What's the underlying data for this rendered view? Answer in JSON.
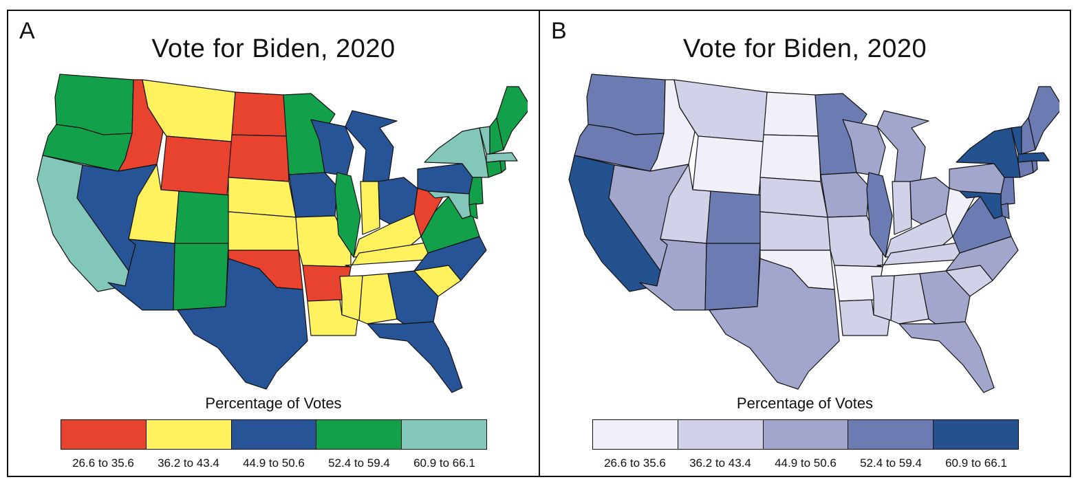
{
  "panels": [
    {
      "letter": "A",
      "title": "Vote for Biden, 2020",
      "legend_title": "Percentage of Votes",
      "classes": [
        {
          "label": "26.6 to 35.6",
          "color": "#e8432f"
        },
        {
          "label": "36.2 to 43.4",
          "color": "#fff25e"
        },
        {
          "label": "44.9 to 50.6",
          "color": "#265496"
        },
        {
          "label": "52.4 to 59.4",
          "color": "#13a04a"
        },
        {
          "label": "60.9 to 66.1",
          "color": "#83c7bb"
        }
      ]
    },
    {
      "letter": "B",
      "title": "Vote for Biden, 2020",
      "legend_title": "Percentage of Votes",
      "classes": [
        {
          "label": "26.6 to 35.6",
          "color": "#f1f0f8"
        },
        {
          "label": "36.2 to 43.4",
          "color": "#d1d1e7"
        },
        {
          "label": "44.9 to 50.6",
          "color": "#a2a6cd"
        },
        {
          "label": "52.4 to 59.4",
          "color": "#6c7cb2"
        },
        {
          "label": "60.9 to 66.1",
          "color": "#24528f"
        }
      ]
    }
  ],
  "states": [
    {
      "id": "WA",
      "class": 3
    },
    {
      "id": "OR",
      "class": 3
    },
    {
      "id": "CA",
      "class": 4
    },
    {
      "id": "ID",
      "class": 0
    },
    {
      "id": "NV",
      "class": 2
    },
    {
      "id": "MT",
      "class": 1
    },
    {
      "id": "WY",
      "class": 0
    },
    {
      "id": "UT",
      "class": 1
    },
    {
      "id": "AZ",
      "class": 2
    },
    {
      "id": "CO",
      "class": 3
    },
    {
      "id": "NM",
      "class": 3
    },
    {
      "id": "ND",
      "class": 0
    },
    {
      "id": "SD",
      "class": 0
    },
    {
      "id": "NE",
      "class": 1
    },
    {
      "id": "KS",
      "class": 1
    },
    {
      "id": "OK",
      "class": 0
    },
    {
      "id": "TX",
      "class": 2
    },
    {
      "id": "MN",
      "class": 3
    },
    {
      "id": "IA",
      "class": 2
    },
    {
      "id": "MO",
      "class": 1
    },
    {
      "id": "AR",
      "class": 0
    },
    {
      "id": "LA",
      "class": 1
    },
    {
      "id": "WI",
      "class": 2
    },
    {
      "id": "IL",
      "class": 3
    },
    {
      "id": "MI",
      "class": 2
    },
    {
      "id": "IN",
      "class": 1
    },
    {
      "id": "OH",
      "class": 2
    },
    {
      "id": "KY",
      "class": 1
    },
    {
      "id": "TN",
      "class": 1
    },
    {
      "id": "MS",
      "class": 1
    },
    {
      "id": "AL",
      "class": 1
    },
    {
      "id": "GA",
      "class": 2
    },
    {
      "id": "FL",
      "class": 2
    },
    {
      "id": "SC",
      "class": 1
    },
    {
      "id": "NC",
      "class": 2
    },
    {
      "id": "VA",
      "class": 3
    },
    {
      "id": "WV",
      "class": 0
    },
    {
      "id": "PA",
      "class": 2
    },
    {
      "id": "NY",
      "class": 4
    },
    {
      "id": "NJ",
      "class": 3
    },
    {
      "id": "DE",
      "class": 3
    },
    {
      "id": "MD",
      "class": 4
    },
    {
      "id": "CT",
      "class": 3
    },
    {
      "id": "RI",
      "class": 3
    },
    {
      "id": "MA",
      "class": 4
    },
    {
      "id": "VT",
      "class": 4
    },
    {
      "id": "NH",
      "class": 3
    },
    {
      "id": "ME",
      "class": 3
    }
  ]
}
